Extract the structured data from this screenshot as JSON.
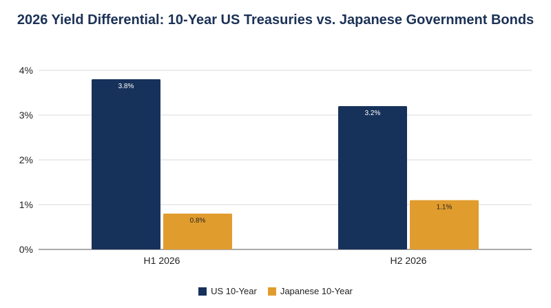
{
  "chart_data": {
    "type": "bar",
    "title": "2026 Yield Differential: 10-Year US Treasuries vs. Japanese Government Bonds",
    "categories": [
      "H1 2026",
      "H2 2026"
    ],
    "series": [
      {
        "name": "US 10-Year",
        "values": [
          3.8,
          3.2
        ],
        "labels": [
          "3.8%",
          "3.2%"
        ],
        "color": "#17325a"
      },
      {
        "name": "Japanese 10-Year",
        "values": [
          0.8,
          1.1
        ],
        "labels": [
          "0.8%",
          "1.1%"
        ],
        "color": "#e19c2e"
      }
    ],
    "yticks": [
      0,
      1,
      2,
      3,
      4
    ],
    "ytick_labels": [
      "0%",
      "1%",
      "2%",
      "3%",
      "4%"
    ],
    "ylim": [
      0,
      4
    ],
    "grid": true,
    "legend_position": "bottom-center"
  }
}
